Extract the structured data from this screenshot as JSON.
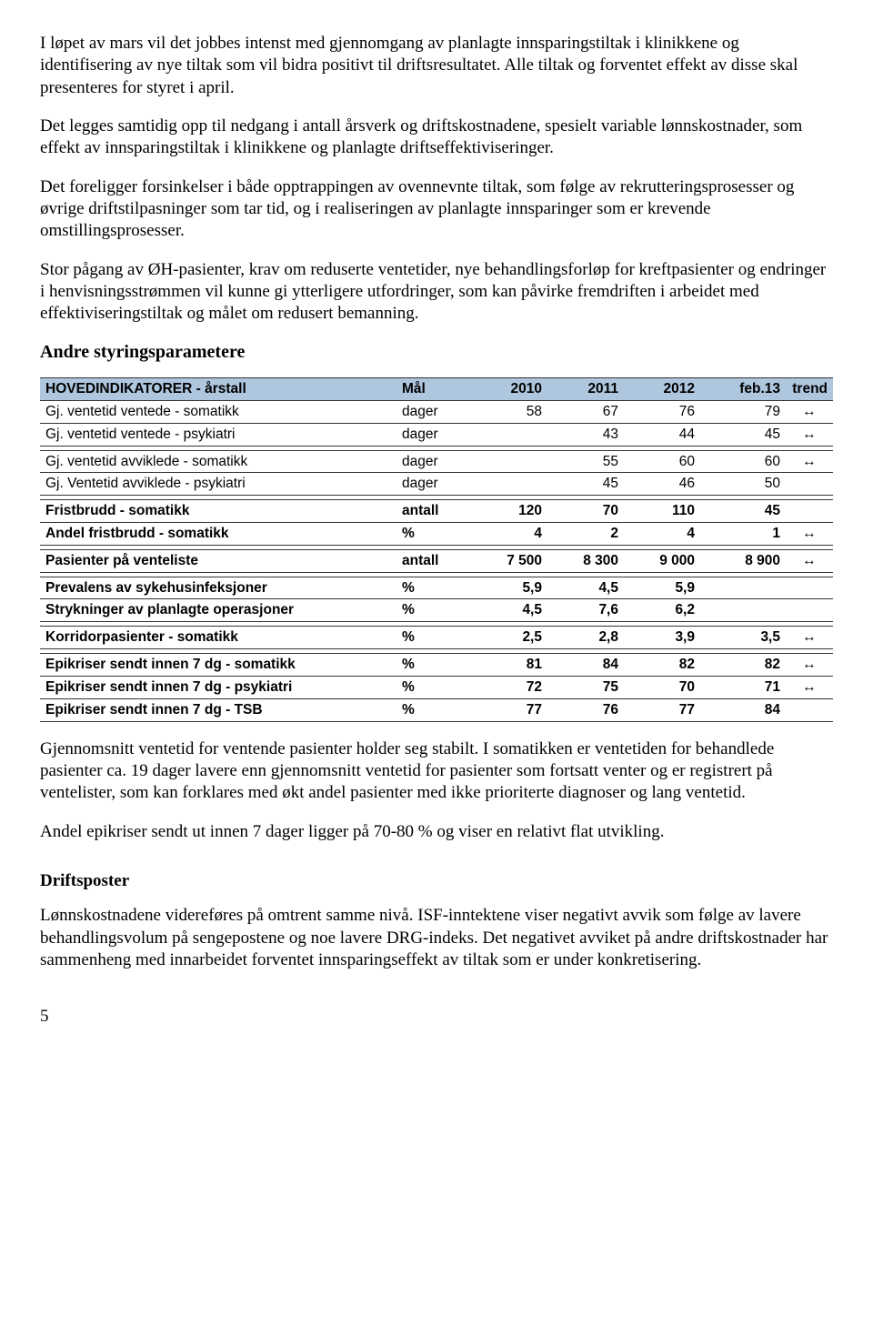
{
  "paragraphs": {
    "p1": "I løpet av mars vil det jobbes intenst med gjennomgang av planlagte innsparingstiltak i klinikkene og identifisering av nye tiltak som vil bidra positivt til driftsresultatet. Alle tiltak og forventet effekt av disse skal presenteres for styret i april.",
    "p2": "Det legges samtidig opp til nedgang i antall årsverk og driftskostnadene, spesielt variable lønnskostnader, som effekt av innsparingstiltak i klinikkene og planlagte driftseffektiviseringer.",
    "p3": "Det foreligger forsinkelser i både opptrappingen av ovennevnte tiltak, som følge av rekrutteringsprosesser og øvrige driftstilpasninger som tar tid, og i realiseringen av planlagte innsparinger som er krevende omstillingsprosesser.",
    "p4": "Stor pågang av ØH-pasienter, krav om reduserte ventetider, nye behandlingsforløp for kreftpasienter og endringer i henvisningsstrømmen vil kunne gi ytterligere utfordringer, som kan påvirke fremdriften i arbeidet med effektiviseringstiltak og målet om redusert bemanning.",
    "heading_params": "Andre styringsparametere",
    "p5": "Gjennomsnitt ventetid for ventende pasienter holder seg stabilt. I somatikken er ventetiden for behandlede pasienter ca. 19 dager lavere enn gjennomsnitt ventetid for pasienter som fortsatt venter og er registrert på ventelister, som kan forklares med økt andel pasienter med ikke prioriterte diagnoser og lang ventetid.",
    "p6": "Andel epikriser sendt ut innen 7 dager ligger på 70-80 % og viser en relativt flat utvikling.",
    "heading_drift": "Driftsposter",
    "p7": "Lønnskostnadene videreføres på omtrent samme nivå. ISF-inntektene viser negativt avvik som følge av lavere behandlingsvolum på sengepostene og noe lavere DRG-indeks. Det negativet avviket på andre driftskostnader har sammenheng med innarbeidet forventet innsparingseffekt av tiltak som er under konkretisering."
  },
  "table": {
    "header_bg": "#aec6de",
    "columns": {
      "c0": "HOVEDINDIKATORER - årstall",
      "c1": "Mål",
      "c2": "2010",
      "c3": "2011",
      "c4": "2012",
      "c5": "feb.13",
      "c6": "trend"
    },
    "rows": [
      {
        "label": "Gj. ventetid ventede - somatikk",
        "unit": "dager",
        "v2010": "58",
        "v2011": "67",
        "v2012": "76",
        "vFeb": "79",
        "trend": "↔",
        "bold": false
      },
      {
        "label": "Gj. ventetid ventede - psykiatri",
        "unit": "dager",
        "v2010": "",
        "v2011": "43",
        "v2012": "44",
        "vFeb": "45",
        "trend": "↔",
        "bold": false
      },
      {
        "spacer": true
      },
      {
        "label": "Gj. ventetid avviklede - somatikk",
        "unit": "dager",
        "v2010": "",
        "v2011": "55",
        "v2012": "60",
        "vFeb": "60",
        "trend": "↔",
        "bold": false
      },
      {
        "label": "Gj. Ventetid avviklede - psykiatri",
        "unit": "dager",
        "v2010": "",
        "v2011": "45",
        "v2012": "46",
        "vFeb": "50",
        "trend": "",
        "bold": false
      },
      {
        "spacer": true
      },
      {
        "label": "Fristbrudd - somatikk",
        "unit": "antall",
        "v2010": "120",
        "v2011": "70",
        "v2012": "110",
        "vFeb": "45",
        "trend": "",
        "bold": true
      },
      {
        "label": "Andel fristbrudd - somatikk",
        "unit": "%",
        "v2010": "4",
        "v2011": "2",
        "v2012": "4",
        "vFeb": "1",
        "trend": "↔",
        "bold": true
      },
      {
        "spacer": true
      },
      {
        "label": "Pasienter på venteliste",
        "unit": "antall",
        "v2010": "7 500",
        "v2011": "8 300",
        "v2012": "9 000",
        "vFeb": "8 900",
        "trend": "↔",
        "bold": true
      },
      {
        "spacer": true
      },
      {
        "label": "Prevalens av sykehusinfeksjoner",
        "unit": "%",
        "v2010": "5,9",
        "v2011": "4,5",
        "v2012": "5,9",
        "vFeb": "",
        "trend": "",
        "bold": true
      },
      {
        "label": "Strykninger av planlagte operasjoner",
        "unit": "%",
        "v2010": "4,5",
        "v2011": "7,6",
        "v2012": "6,2",
        "vFeb": "",
        "trend": "",
        "bold": true
      },
      {
        "spacer": true
      },
      {
        "label": "Korridorpasienter - somatikk",
        "unit": "%",
        "v2010": "2,5",
        "v2011": "2,8",
        "v2012": "3,9",
        "vFeb": "3,5",
        "trend": "↔",
        "bold": true
      },
      {
        "spacer": true
      },
      {
        "label": "Epikriser sendt innen 7 dg - somatikk",
        "unit": "%",
        "v2010": "81",
        "v2011": "84",
        "v2012": "82",
        "vFeb": "82",
        "trend": "↔",
        "bold": true
      },
      {
        "label": "Epikriser sendt innen 7 dg - psykiatri",
        "unit": "%",
        "v2010": "72",
        "v2011": "75",
        "v2012": "70",
        "vFeb": "71",
        "trend": "↔",
        "bold": true
      },
      {
        "label": "Epikriser sendt innen 7 dg - TSB",
        "unit": "%",
        "v2010": "77",
        "v2011": "76",
        "v2012": "77",
        "vFeb": "84",
        "trend": "",
        "bold": true
      }
    ]
  },
  "page_number": "5"
}
